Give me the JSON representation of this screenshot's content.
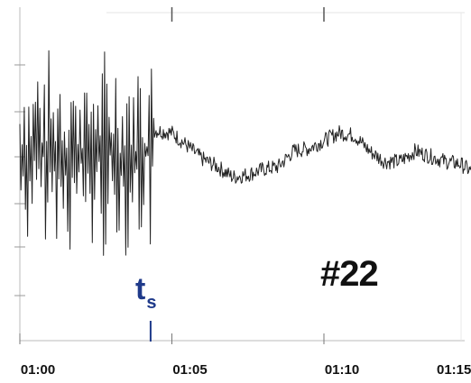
{
  "chart_data": {
    "type": "line",
    "title": "",
    "annotation": "#22",
    "marker": {
      "label_main": "t",
      "label_sub": "s",
      "x": 4.3,
      "color": "#1f3a8a"
    },
    "x_ticks": [
      "01:00",
      "01:05",
      "01:10",
      "01:15"
    ],
    "x_tick_minutes": [
      0,
      5,
      10,
      15
    ],
    "xlim_minutes": [
      0,
      15.5
    ],
    "grid": false,
    "series": [
      {
        "name": "",
        "color": "#222222",
        "noisy_segment": {
          "x_start": 0,
          "x_end": 4.4,
          "center": 0.55,
          "amplitude": 0.42
        },
        "calm_segment": {
          "x_start": 4.4,
          "x_end": 15.5,
          "points": [
            [
              4.4,
              0.64
            ],
            [
              5.0,
              0.63
            ],
            [
              5.5,
              0.58
            ],
            [
              6.0,
              0.53
            ],
            [
              6.5,
              0.5
            ],
            [
              7.0,
              0.46
            ],
            [
              7.5,
              0.47
            ],
            [
              8.0,
              0.49
            ],
            [
              8.5,
              0.5
            ],
            [
              9.0,
              0.56
            ],
            [
              9.5,
              0.57
            ],
            [
              10.0,
              0.6
            ],
            [
              10.5,
              0.63
            ],
            [
              11.0,
              0.62
            ],
            [
              11.5,
              0.56
            ],
            [
              12.0,
              0.52
            ],
            [
              12.5,
              0.52
            ],
            [
              13.0,
              0.56
            ],
            [
              13.5,
              0.54
            ],
            [
              14.0,
              0.52
            ],
            [
              14.5,
              0.51
            ],
            [
              15.0,
              0.47
            ],
            [
              15.5,
              0.49
            ]
          ],
          "jitter": 0.03
        }
      }
    ]
  }
}
